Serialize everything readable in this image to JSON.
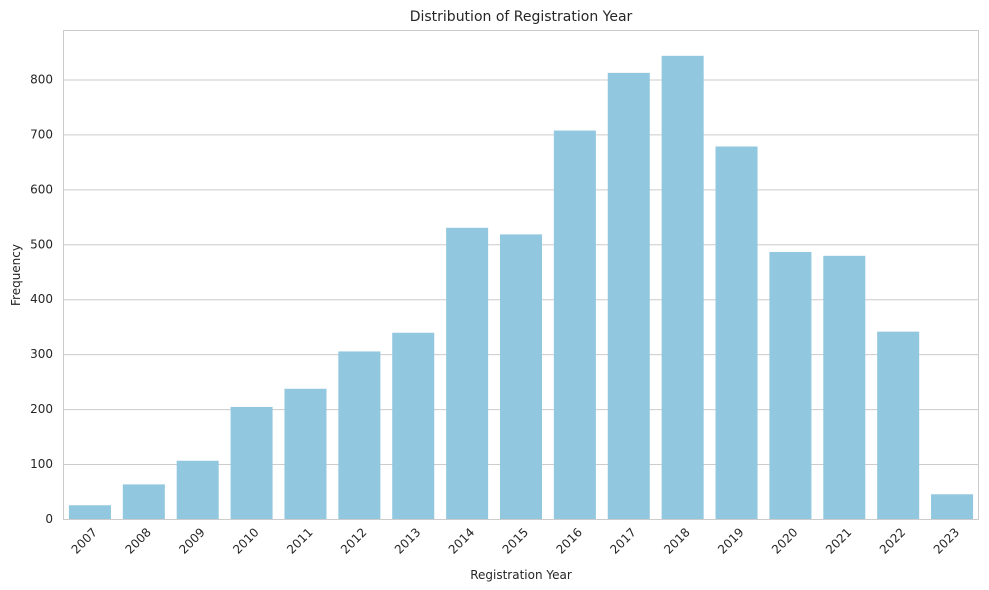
{
  "chart_data": {
    "type": "bar",
    "title": "Distribution of Registration Year",
    "xlabel": "Registration Year",
    "ylabel": "Frequency",
    "categories": [
      "2007",
      "2008",
      "2009",
      "2010",
      "2011",
      "2012",
      "2013",
      "2014",
      "2015",
      "2016",
      "2017",
      "2018",
      "2019",
      "2020",
      "2021",
      "2022",
      "2023"
    ],
    "values": [
      25,
      63,
      106,
      204,
      237,
      305,
      339,
      530,
      518,
      707,
      812,
      843,
      678,
      486,
      479,
      341,
      45
    ],
    "ylim": [
      0,
      890
    ],
    "yticks": [
      0,
      100,
      200,
      300,
      400,
      500,
      600,
      700,
      800
    ],
    "grid": true,
    "bar_color": "#92c8df",
    "x_tick_rotation_deg": 45
  }
}
